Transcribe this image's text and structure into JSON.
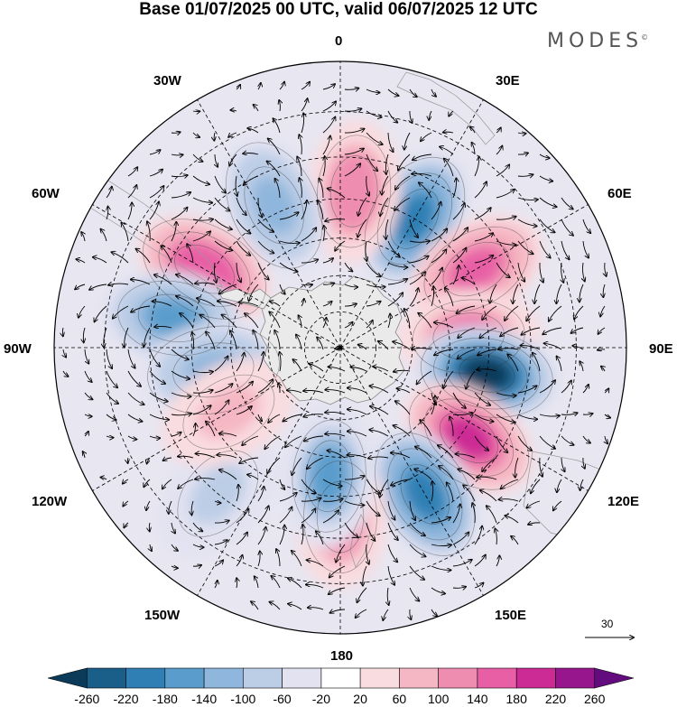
{
  "title": "Base 01/07/2025 00 UTC, valid 06/07/2025 12 UTC",
  "brand": "MODES",
  "brand_mark": "©",
  "longitude_labels": {
    "n0": "0",
    "n30e": "30E",
    "n60e": "60E",
    "n90e": "90E",
    "n120e": "120E",
    "n150e": "150E",
    "n180": "180",
    "n150w": "150W",
    "n120w": "120W",
    "n90w": "90W",
    "n60w": "60W",
    "n30w": "30W"
  },
  "vector_scale_label": "30",
  "colorbar": {
    "colors": [
      "#0c3b5a",
      "#1a5e8a",
      "#2f7fb4",
      "#5a9dcc",
      "#8fb6dc",
      "#bccde6",
      "#e2e2f1",
      "#ffffff",
      "#f9dcdf",
      "#f5b7c3",
      "#ef8db0",
      "#e85fa5",
      "#cc2a94",
      "#97168d",
      "#620c7e"
    ],
    "ticks": [
      "-260",
      "-220",
      "-180",
      "-140",
      "-100",
      "-60",
      "-20",
      "20",
      "60",
      "100",
      "140",
      "180",
      "220",
      "260"
    ]
  },
  "map_data": {
    "projection": "south-polar-stereographic",
    "field": "anomaly (shaded) with wind vectors",
    "continent": "Antarctica",
    "features": [
      {
        "sign": "negative",
        "lon": 30,
        "lat": -50,
        "strength": -200
      },
      {
        "sign": "positive",
        "lon": 5,
        "lat": -48,
        "strength": 140
      },
      {
        "sign": "negative",
        "lon": -25,
        "lat": -48,
        "strength": -120
      },
      {
        "sign": "positive",
        "lon": -60,
        "lat": -48,
        "strength": 180
      },
      {
        "sign": "negative",
        "lon": -80,
        "lat": -45,
        "strength": -160
      },
      {
        "sign": "positive",
        "lon": 60,
        "lat": -48,
        "strength": 160
      },
      {
        "sign": "positive",
        "lon": 85,
        "lat": -55,
        "strength": 150
      },
      {
        "sign": "negative",
        "lon": 100,
        "lat": -50,
        "strength": -260
      },
      {
        "sign": "positive",
        "lon": 125,
        "lat": -48,
        "strength": 200
      },
      {
        "sign": "negative",
        "lon": 150,
        "lat": -45,
        "strength": -200
      },
      {
        "sign": "positive",
        "lon": 180,
        "lat": -45,
        "strength": 140
      },
      {
        "sign": "negative",
        "lon": -175,
        "lat": -55,
        "strength": -140
      },
      {
        "sign": "negative",
        "lon": -100,
        "lat": -55,
        "strength": -120
      },
      {
        "sign": "negative",
        "lon": -140,
        "lat": -40,
        "strength": -60
      },
      {
        "sign": "positive",
        "lon": -120,
        "lat": -55,
        "strength": 80
      }
    ]
  }
}
